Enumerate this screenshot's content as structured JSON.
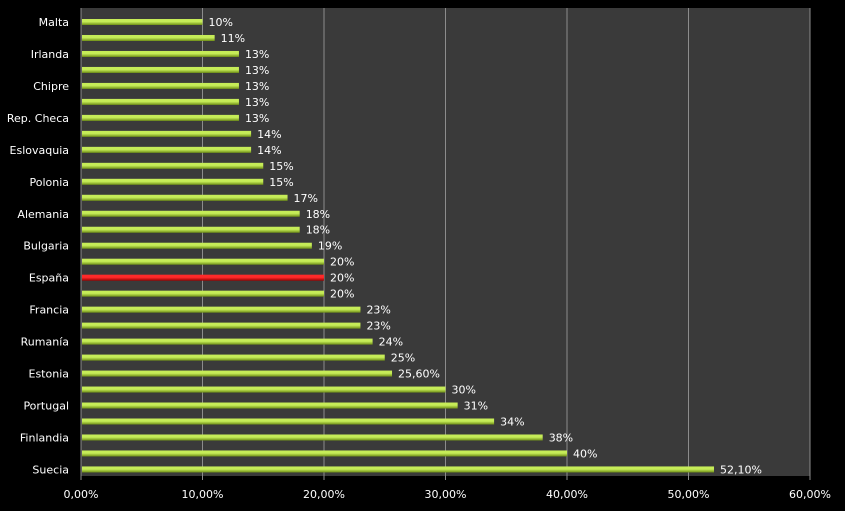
{
  "chart_data": {
    "type": "bar",
    "orientation": "horizontal",
    "categories": [
      "Malta",
      "",
      "Irlanda",
      "",
      "Chipre",
      "",
      "Rep. Checa",
      "",
      "Eslovaquia",
      "",
      "Polonia",
      "",
      "Alemania",
      "",
      "Bulgaria",
      "",
      "España",
      "",
      "Francia",
      "",
      "Rumanía",
      "",
      "Estonia",
      "",
      "Portugal",
      "",
      "Finlandia",
      "",
      "Suecia"
    ],
    "values": [
      10,
      11,
      13,
      13,
      13,
      13,
      13,
      14,
      14,
      15,
      15,
      17,
      18,
      18,
      19,
      20,
      20,
      20,
      23,
      23,
      24,
      25,
      25.6,
      30,
      31,
      34,
      38,
      40,
      52.1
    ],
    "data_labels": [
      "10%",
      "11%",
      "13%",
      "13%",
      "13%",
      "13%",
      "13%",
      "14%",
      "14%",
      "15%",
      "15%",
      "17%",
      "18%",
      "18%",
      "19%",
      "20%",
      "20%",
      "20%",
      "23%",
      "23%",
      "24%",
      "25%",
      "25,60%",
      "30%",
      "31%",
      "34%",
      "38%",
      "40%",
      "52,10%"
    ],
    "x_ticks": [
      "0,00%",
      "10,00%",
      "20,00%",
      "30,00%",
      "40,00%",
      "50,00%",
      "60,00%"
    ],
    "xlim": [
      0,
      60
    ],
    "highlight_index": 16,
    "grid": "vertical",
    "colors": {
      "background": "#000000",
      "plot_area": "#3a3a3a",
      "gridline": "#8c8c8c",
      "bar": "#c6ec58",
      "bar_dark": "#6f8f16",
      "highlight": "#ff2a2a",
      "highlight_dark": "#9a0000",
      "text": "#ffffff"
    }
  }
}
